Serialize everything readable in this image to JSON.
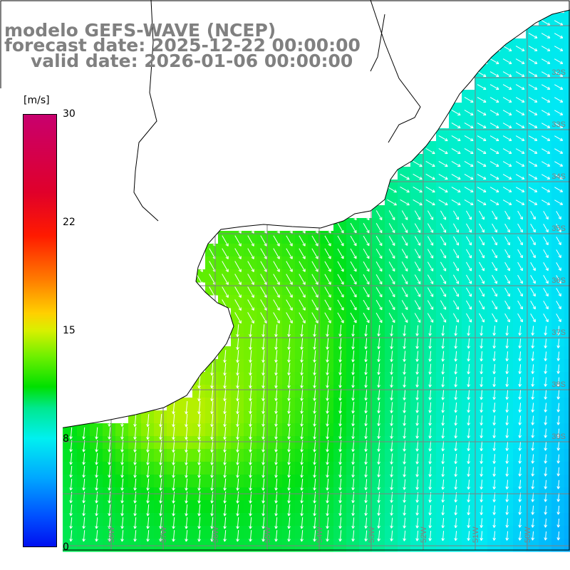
{
  "title": {
    "model": "modelo GEFS-WAVE (NCEP)",
    "forecast": "forecast date: 2025-12-22 00:00:00",
    "valid": "valid date: 2026-01-06 00:00:00"
  },
  "colorbar": {
    "unit": "[m/s]",
    "ticks": [
      "30",
      "22",
      "15",
      "8",
      "0"
    ],
    "tick_values": [
      30,
      22,
      15,
      8,
      0
    ],
    "range": [
      0,
      30
    ],
    "colors": [
      "#0010f0",
      "#0050ff",
      "#00a8ff",
      "#00f0f0",
      "#00e890",
      "#00e000",
      "#6ef000",
      "#d8f000",
      "#ffd000",
      "#ff7a00",
      "#ff1a00",
      "#e0002a",
      "#c8006e"
    ]
  },
  "map": {
    "land_color": "#ffffff",
    "coastline_color": "#000000",
    "gridline_color": "#808080",
    "arrow_color": "#ffffff",
    "lat_labels": [
      "32S",
      "33S",
      "34S",
      "35S",
      "36S",
      "37S",
      "38S",
      "39S"
    ],
    "lon_labels": [
      "60W",
      "59W",
      "58W",
      "57W",
      "56W",
      "55W",
      "54W",
      "53W",
      "52W",
      "51W",
      "50W"
    ]
  }
}
